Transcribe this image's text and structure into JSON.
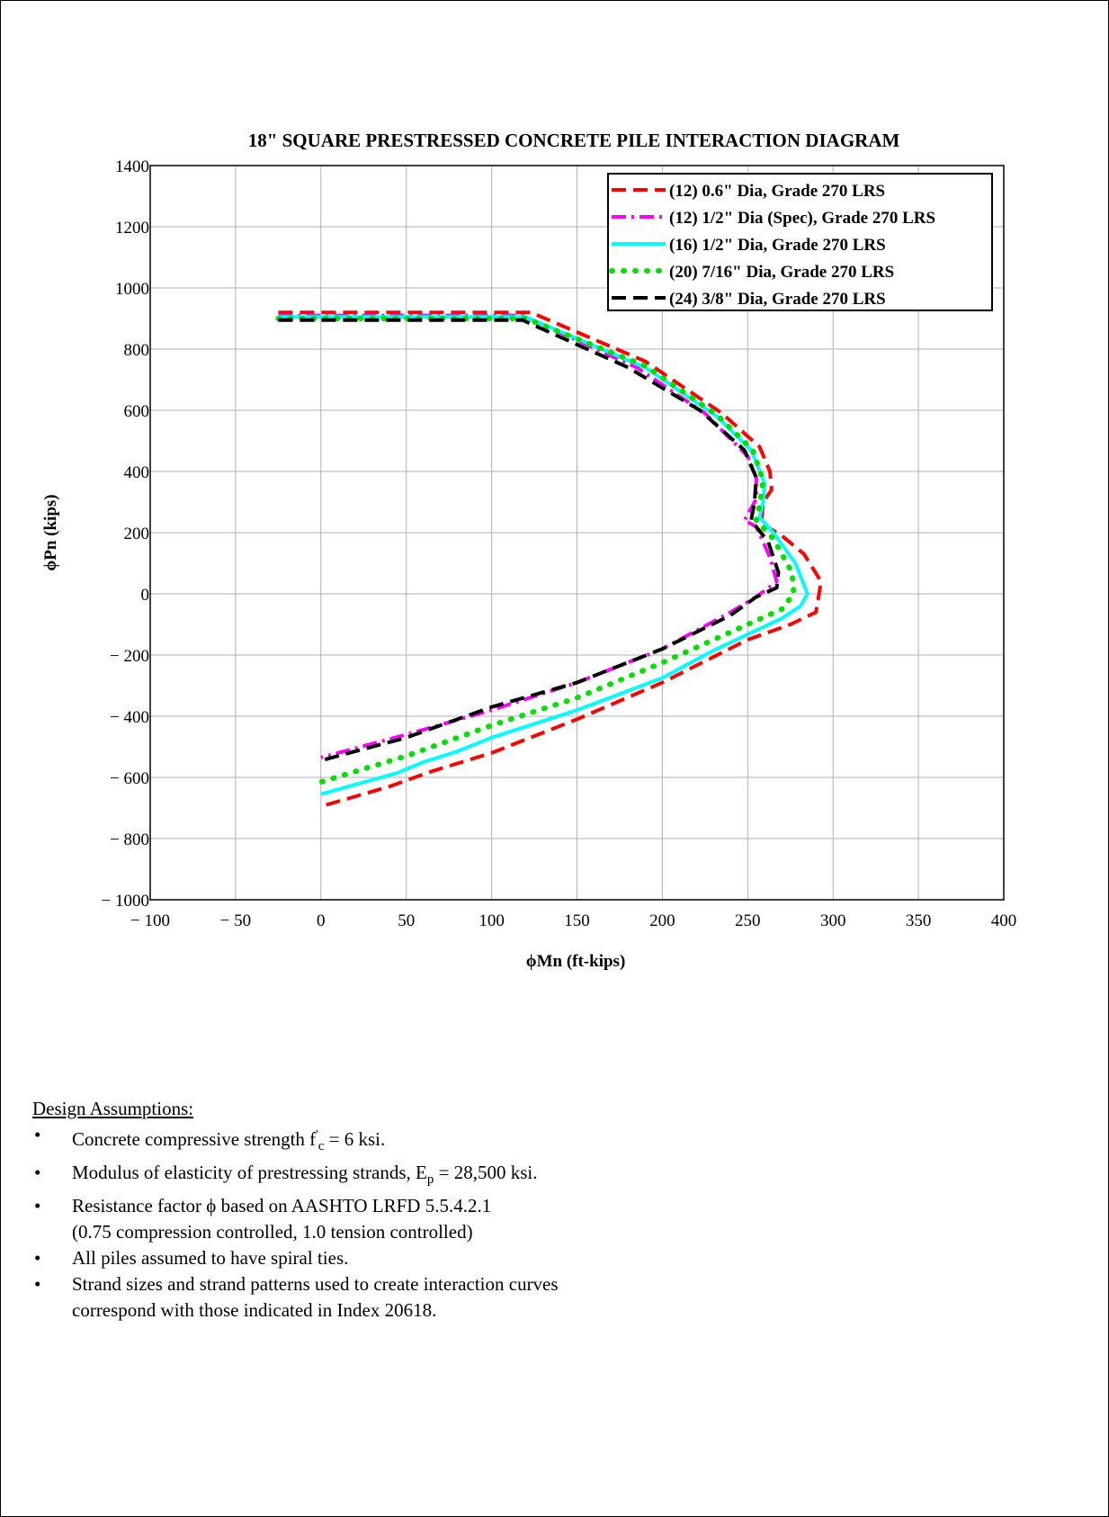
{
  "chart_data": {
    "type": "line",
    "title": "18\" SQUARE PRESTRESSED CONCRETE PILE INTERACTION DIAGRAM",
    "xlabel": "ϕMn (ft-kips)",
    "ylabel": "ϕPn (kips)",
    "xlim": [
      -100,
      400
    ],
    "ylim": [
      -1000,
      1400
    ],
    "xticks": [
      -100,
      -50,
      0,
      50,
      100,
      150,
      200,
      250,
      300,
      350,
      400
    ],
    "yticks": [
      -1000,
      -800,
      -600,
      -400,
      -200,
      0,
      200,
      400,
      600,
      800,
      1000,
      1200,
      1400
    ],
    "x_tick_labels": [
      "− 100",
      "− 50",
      "0",
      "50",
      "100",
      "150",
      "200",
      "250",
      "300",
      "350",
      "400"
    ],
    "y_tick_labels": [
      "− 1000",
      "− 800",
      "− 600",
      "− 400",
      "− 200",
      "0",
      "200",
      "400",
      "600",
      "800",
      "1000",
      "1200",
      "1400"
    ],
    "grid": true,
    "legend_position": "top-right",
    "series": [
      {
        "name": "(12) 0.6\" Dia, Grade 270 LRS",
        "color": "#ff0000",
        "dash": "dashed",
        "points": [
          [
            -25,
            920
          ],
          [
            123,
            920
          ],
          [
            190,
            760
          ],
          [
            235,
            590
          ],
          [
            257,
            480
          ],
          [
            263,
            400
          ],
          [
            264,
            340
          ],
          [
            259,
            300
          ],
          [
            258,
            230
          ],
          [
            270,
            190
          ],
          [
            283,
            130
          ],
          [
            293,
            40
          ],
          [
            290,
            -60
          ],
          [
            275,
            -100
          ],
          [
            250,
            -150
          ],
          [
            200,
            -290
          ],
          [
            150,
            -410
          ],
          [
            100,
            -520
          ],
          [
            65,
            -580
          ],
          [
            40,
            -630
          ],
          [
            0,
            -695
          ]
        ]
      },
      {
        "name": "(12) 1/2\" Dia (Spec), Grade 270 LRS",
        "color": "#ff00ff",
        "dash": "dashdot",
        "points": [
          [
            -25,
            910
          ],
          [
            118,
            910
          ],
          [
            185,
            740
          ],
          [
            225,
            590
          ],
          [
            250,
            450
          ],
          [
            255,
            380
          ],
          [
            255,
            310
          ],
          [
            248,
            240
          ],
          [
            255,
            220
          ],
          [
            263,
            120
          ],
          [
            267,
            40
          ],
          [
            255,
            -10
          ],
          [
            240,
            -60
          ],
          [
            200,
            -180
          ],
          [
            150,
            -290
          ],
          [
            100,
            -380
          ],
          [
            50,
            -460
          ],
          [
            0,
            -535
          ]
        ]
      },
      {
        "name": "(16) 1/2\" Dia, Grade 270 LRS",
        "color": "#00ffff",
        "dash": "solid",
        "points": [
          [
            -25,
            905
          ],
          [
            120,
            905
          ],
          [
            190,
            740
          ],
          [
            232,
            580
          ],
          [
            252,
            470
          ],
          [
            260,
            360
          ],
          [
            259,
            300
          ],
          [
            257,
            250
          ],
          [
            265,
            200
          ],
          [
            278,
            100
          ],
          [
            285,
            0
          ],
          [
            281,
            -40
          ],
          [
            270,
            -80
          ],
          [
            230,
            -185
          ],
          [
            200,
            -275
          ],
          [
            150,
            -380
          ],
          [
            100,
            -470
          ],
          [
            80,
            -515
          ],
          [
            60,
            -550
          ],
          [
            45,
            -585
          ],
          [
            0,
            -655
          ]
        ]
      },
      {
        "name": "(20) 7/16\" Dia, Grade 270 LRS",
        "color": "#00dd00",
        "dash": "dotted",
        "points": [
          [
            -25,
            900
          ],
          [
            120,
            900
          ],
          [
            190,
            745
          ],
          [
            232,
            585
          ],
          [
            253,
            470
          ],
          [
            259,
            370
          ],
          [
            257,
            290
          ],
          [
            255,
            240
          ],
          [
            265,
            180
          ],
          [
            276,
            70
          ],
          [
            277,
            0
          ],
          [
            270,
            -50
          ],
          [
            200,
            -225
          ],
          [
            150,
            -340
          ],
          [
            100,
            -430
          ],
          [
            50,
            -530
          ],
          [
            0,
            -615
          ]
        ]
      },
      {
        "name": "(24) 3/8\" Dia, Grade 270 LRS",
        "color": "#000000",
        "dash": "dashed",
        "points": [
          [
            -25,
            895
          ],
          [
            118,
            895
          ],
          [
            180,
            740
          ],
          [
            222,
            600
          ],
          [
            248,
            470
          ],
          [
            255,
            380
          ],
          [
            254,
            300
          ],
          [
            252,
            240
          ],
          [
            262,
            170
          ],
          [
            268,
            70
          ],
          [
            267,
            20
          ],
          [
            255,
            -10
          ],
          [
            240,
            -70
          ],
          [
            200,
            -180
          ],
          [
            150,
            -290
          ],
          [
            100,
            -370
          ],
          [
            50,
            -470
          ],
          [
            0,
            -545
          ]
        ]
      }
    ]
  },
  "notes": {
    "title": "Design Assumptions:",
    "bullet_symbol": "•",
    "items": [
      {
        "line1_a": "Concrete compressive strength f",
        "line1_sup": "'",
        "line1_sub": "c",
        "line1_b": " = 6 ksi.",
        "line2": ""
      },
      {
        "line1_a": "Modulus of elasticity of prestressing strands, E",
        "line1_sup": "",
        "line1_sub": "p",
        "line1_b": " = 28,500 ksi.",
        "line2": ""
      },
      {
        "line1_a": "Resistance factor ϕ based on AASHTO LRFD 5.5.4.2.1",
        "line1_sup": "",
        "line1_sub": "",
        "line1_b": "",
        "line2": "(0.75 compression controlled, 1.0 tension controlled)"
      },
      {
        "line1_a": "All piles assumed to have spiral ties.",
        "line1_sup": "",
        "line1_sub": "",
        "line1_b": "",
        "line2": ""
      },
      {
        "line1_a": "Strand sizes and strand patterns used to create interaction curves",
        "line1_sup": "",
        "line1_sub": "",
        "line1_b": "",
        "line2": "correspond with those indicated in Index 20618."
      }
    ]
  }
}
